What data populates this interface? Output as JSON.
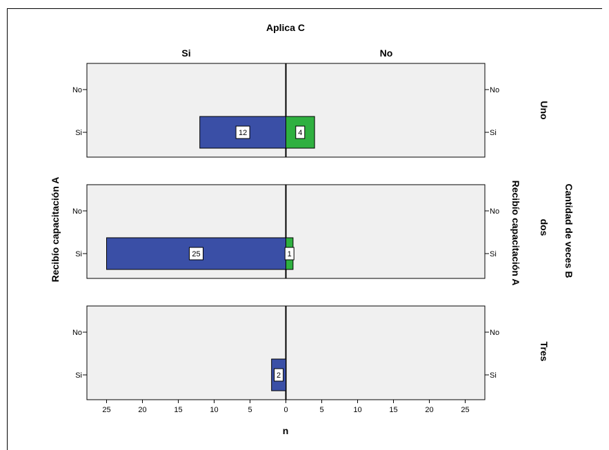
{
  "chart_data": {
    "type": "bar",
    "orientation": "horizontal",
    "title": "Aplica C",
    "column_facets": [
      "Si",
      "No"
    ],
    "row_facet_title": "Cantidad de veces B",
    "row_facets": [
      "Uno",
      "dos",
      "Tres"
    ],
    "ylabel": "Recibío capacitación A",
    "ylabel_right": "Recibío capacitación A",
    "xlabel": "n",
    "categories": [
      "No",
      "Si"
    ],
    "xlim": [
      0,
      28
    ],
    "xticks": [
      25,
      20,
      15,
      10,
      5,
      0,
      5,
      10,
      15,
      20,
      25
    ],
    "colors": {
      "Si": "#3a4fa6",
      "No": "#2fb040",
      "panel": "#f0f0f0"
    },
    "panels": [
      {
        "row": "Uno",
        "values": [
          {
            "category": "Si",
            "facet": "Si",
            "value": 12
          },
          {
            "category": "Si",
            "facet": "No",
            "value": 4
          }
        ]
      },
      {
        "row": "dos",
        "values": [
          {
            "category": "Si",
            "facet": "Si",
            "value": 25
          },
          {
            "category": "Si",
            "facet": "No",
            "value": 1
          }
        ]
      },
      {
        "row": "Tres",
        "values": [
          {
            "category": "Si",
            "facet": "Si",
            "value": 2
          }
        ]
      }
    ]
  }
}
